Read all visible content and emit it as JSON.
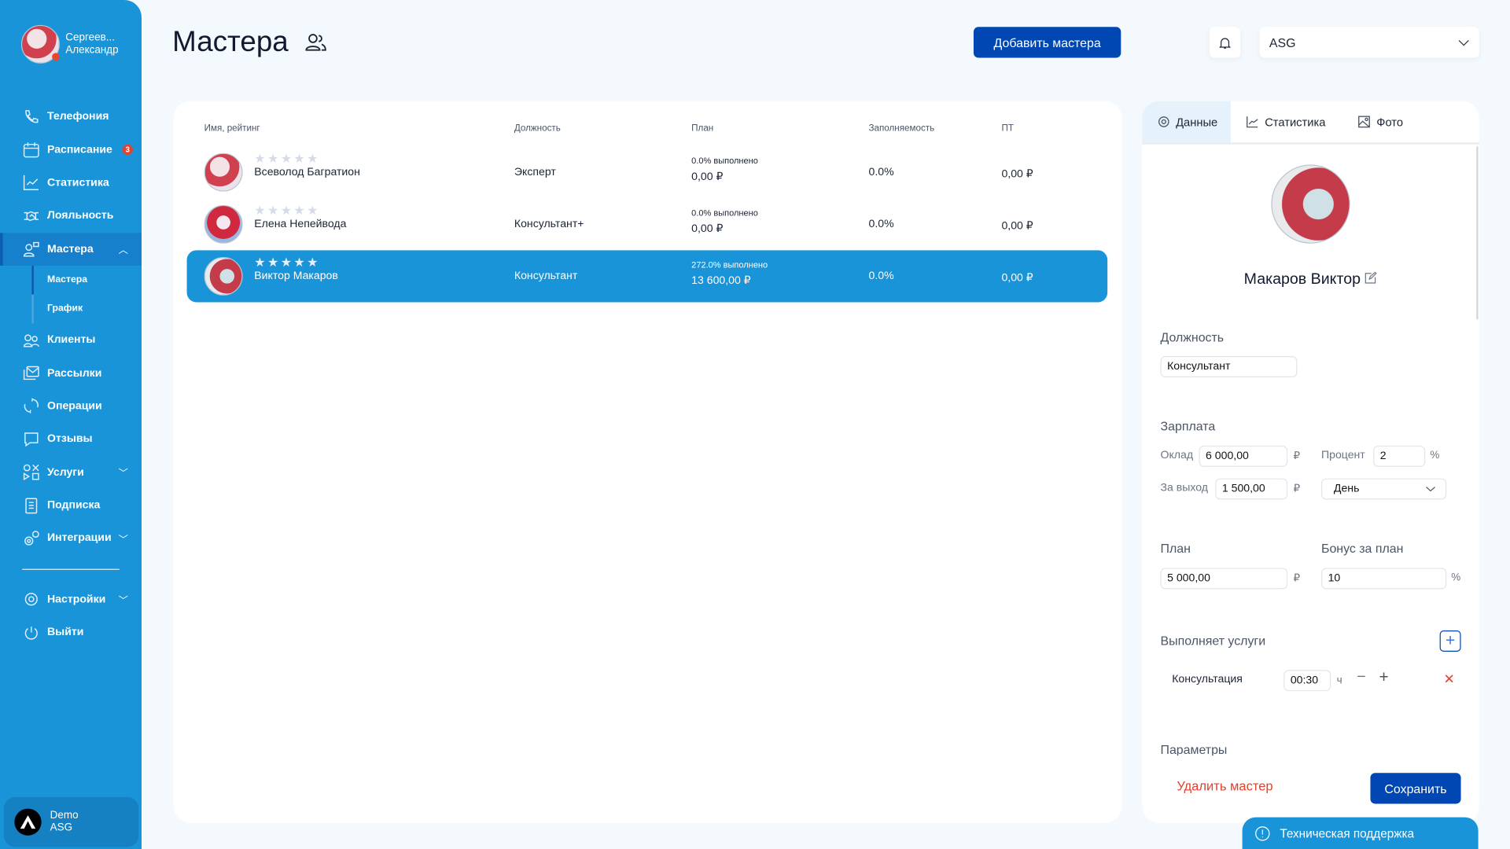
{
  "user": {
    "last_name": "Сергеев...",
    "first_name": "Александр"
  },
  "sidebar": {
    "items": [
      {
        "label": "Телефония",
        "icon": "phone-icon"
      },
      {
        "label": "Расписание",
        "icon": "calendar-icon",
        "badge": "3"
      },
      {
        "label": "Статистика",
        "icon": "chart-icon"
      },
      {
        "label": "Лояльность",
        "icon": "handshake-icon"
      },
      {
        "label": "Мастера",
        "icon": "masters-icon",
        "active": true
      },
      {
        "label": "Клиенты",
        "icon": "clients-icon"
      },
      {
        "label": "Рассылки",
        "icon": "mail-icon"
      },
      {
        "label": "Операции",
        "icon": "sync-icon"
      },
      {
        "label": "Отзывы",
        "icon": "chat-icon"
      },
      {
        "label": "Услуги",
        "icon": "services-icon"
      },
      {
        "label": "Подписка",
        "icon": "document-icon"
      },
      {
        "label": "Интеграции",
        "icon": "gears-icon"
      },
      {
        "label": "Настройки",
        "icon": "gear-icon"
      },
      {
        "label": "Выйти",
        "icon": "power-icon"
      }
    ],
    "sub": [
      "Мастера",
      "График"
    ]
  },
  "account": {
    "name": "Demo",
    "org": "ASG"
  },
  "header": {
    "title": "Мастера",
    "add_button": "Добавить мастера",
    "org_select": "ASG"
  },
  "table": {
    "headers": [
      "Имя, рейтинг",
      "Должность",
      "План",
      "Заполняемость",
      "ПТ"
    ],
    "rows": [
      {
        "name": "Всеволод Багратион",
        "rating": 0,
        "position": "Эксперт",
        "plan_pct": "0.0% выполнено",
        "plan": "0,00 ₽",
        "fill": "0.0%",
        "pt": "0,00 ₽"
      },
      {
        "name": "Елена Непейвода",
        "rating": 0,
        "position": "Консультант+",
        "plan_pct": "0.0% выполнено",
        "plan": "0,00 ₽",
        "fill": "0.0%",
        "pt": "0,00 ₽"
      },
      {
        "name": "Виктор Макаров",
        "rating": 0,
        "position": "Консультант",
        "plan_pct": "272.0% выполнено",
        "plan": "13 600,00 ₽",
        "fill": "0.0%",
        "pt": "0,00 ₽",
        "selected": true
      }
    ]
  },
  "panel": {
    "tabs": [
      "Данные",
      "Статистика",
      "Фото"
    ],
    "name": "Макаров Виктор",
    "position_label": "Должность",
    "position": "Консультант",
    "salary_label": "Зарплата",
    "oklad_label": "Оклад",
    "oklad": "6 000,00",
    "percent_label": "Процент",
    "percent": "2",
    "shift_label": "За выход",
    "shift": "1 500,00",
    "period": "День",
    "currency": "₽",
    "pct_sign": "%",
    "plan_label": "План",
    "plan": "5 000,00",
    "bonus_label": "Бонус за план",
    "bonus": "10",
    "services_label": "Выполняет услуги",
    "service": {
      "name": "Консультация",
      "duration": "00:30",
      "unit": "ч"
    },
    "params_label": "Параметры",
    "delete": "Удалить мастер",
    "save": "Сохранить"
  },
  "support": "Техническая поддержка"
}
